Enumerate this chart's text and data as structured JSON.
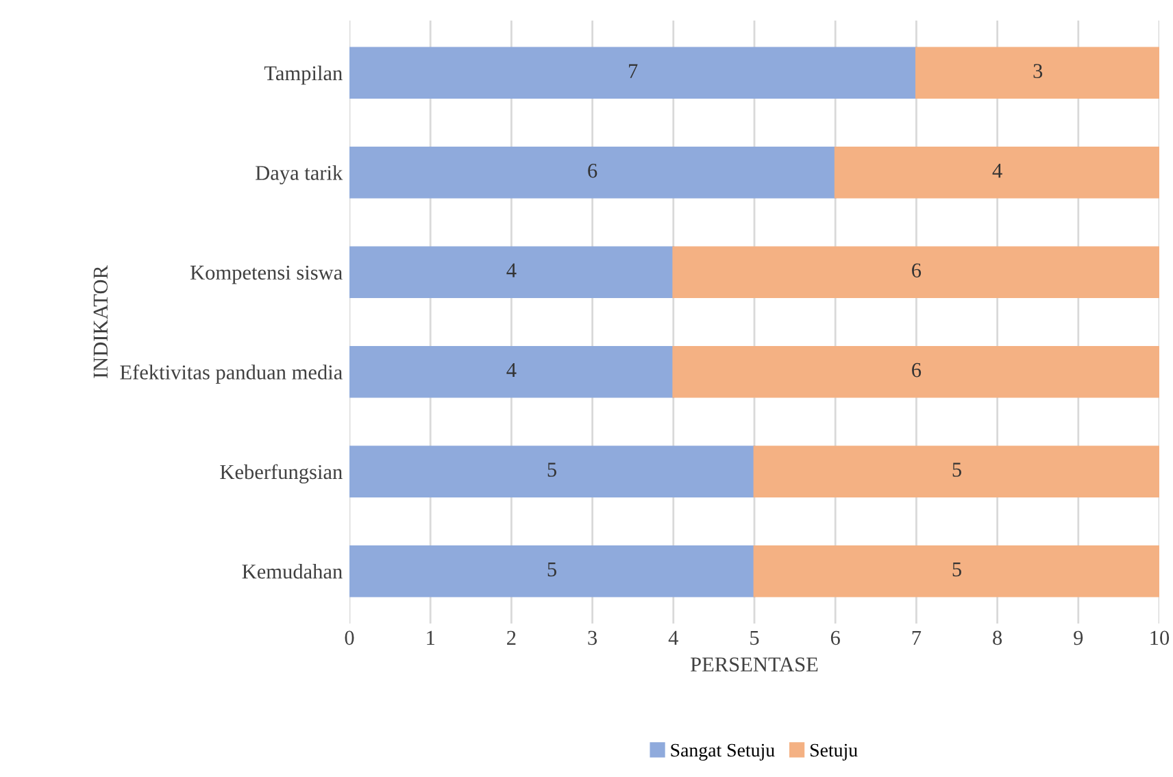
{
  "chart_data": {
    "type": "bar",
    "orientation": "horizontal",
    "stacked": true,
    "xlabel": "PERSENTASE",
    "ylabel": "INDIKATOR",
    "categories": [
      "Tampilan",
      "Daya tarik",
      "Kompetensi siswa",
      "Efektivitas panduan media",
      "Keberfungsian",
      "Kemudahan"
    ],
    "series": [
      {
        "name": "Sangat Setuju",
        "color": "#8faadc",
        "values": [
          7,
          6,
          4,
          4,
          5,
          5
        ]
      },
      {
        "name": "Setuju",
        "color": "#f4b183",
        "values": [
          3,
          4,
          6,
          6,
          5,
          5
        ]
      }
    ],
    "xlim": [
      0,
      10
    ],
    "xticks": [
      0,
      1,
      2,
      3,
      4,
      5,
      6,
      7,
      8,
      9,
      10
    ],
    "grid": "x",
    "legend": "bottom",
    "data_labels": true
  }
}
